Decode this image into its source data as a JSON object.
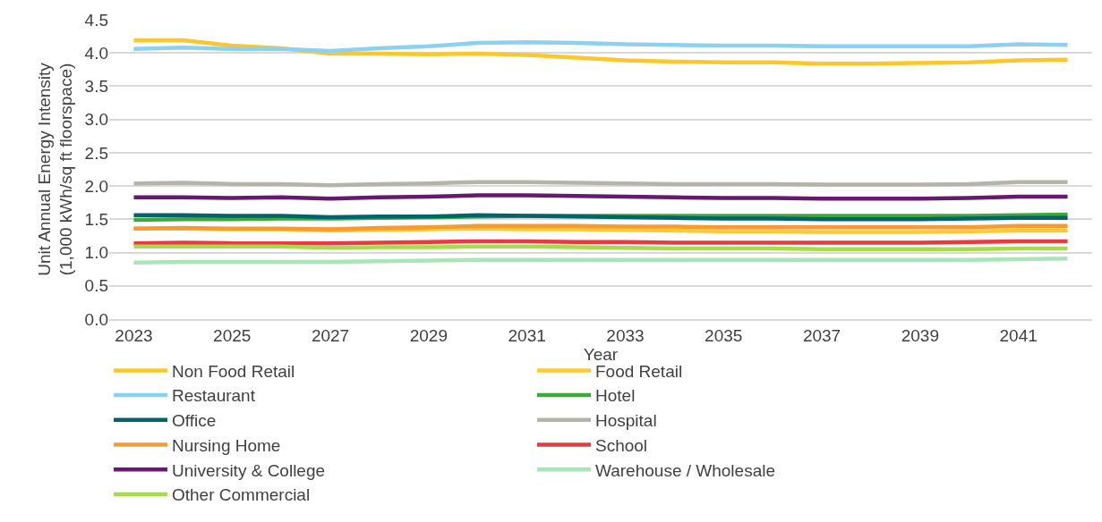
{
  "chart_data": {
    "type": "line",
    "xlabel": "Year",
    "ylabel": "Unit Annual Energy Intensity\n(1,000 kWh/sq ft floorspace)",
    "x": [
      2023,
      2024,
      2025,
      2026,
      2027,
      2028,
      2029,
      2030,
      2031,
      2032,
      2033,
      2034,
      2035,
      2036,
      2037,
      2038,
      2039,
      2040,
      2041,
      2042
    ],
    "xlim": [
      2022.5,
      2042.5
    ],
    "xticks": [
      2023,
      2025,
      2027,
      2029,
      2031,
      2033,
      2035,
      2037,
      2039,
      2041
    ],
    "ylim": [
      0,
      4.5
    ],
    "yticks": [
      {
        "value": 0,
        "label": "0.0"
      },
      {
        "value": 0.5,
        "label": "0.5"
      },
      {
        "value": 1,
        "label": "1.0"
      },
      {
        "value": 1.5,
        "label": "1.5"
      },
      {
        "value": 2,
        "label": "2.0"
      },
      {
        "value": 2.5,
        "label": "2.5"
      },
      {
        "value": 3,
        "label": "3.0"
      },
      {
        "value": 3.5,
        "label": "3.5"
      },
      {
        "value": 4,
        "label": "4.0"
      },
      {
        "value": 4.5,
        "label": "4.5"
      }
    ],
    "grid": "y",
    "legend": "bottom",
    "marker": "none",
    "line_style": "solid",
    "series": [
      {
        "name": "Non Food Retail",
        "color": "#fcc72c",
        "values": [
          4.19,
          4.19,
          4.11,
          4.07,
          3.99,
          3.99,
          3.98,
          3.99,
          3.97,
          3.93,
          3.89,
          3.87,
          3.86,
          3.86,
          3.84,
          3.84,
          3.85,
          3.86,
          3.89,
          3.9
        ]
      },
      {
        "name": "Food Retail",
        "color": "#ffc935",
        "values": [
          1.36,
          1.36,
          1.35,
          1.35,
          1.33,
          1.34,
          1.35,
          1.36,
          1.35,
          1.35,
          1.34,
          1.33,
          1.32,
          1.32,
          1.31,
          1.31,
          1.31,
          1.32,
          1.33,
          1.33
        ]
      },
      {
        "name": "Restaurant",
        "color": "#8dd0f2",
        "values": [
          4.06,
          4.08,
          4.06,
          4.06,
          4.03,
          4.07,
          4.1,
          4.15,
          4.16,
          4.15,
          4.13,
          4.12,
          4.11,
          4.11,
          4.1,
          4.1,
          4.1,
          4.1,
          4.13,
          4.12
        ]
      },
      {
        "name": "Hotel",
        "color": "#3ea83f",
        "values": [
          1.49,
          1.5,
          1.5,
          1.51,
          1.51,
          1.52,
          1.53,
          1.54,
          1.55,
          1.55,
          1.55,
          1.55,
          1.55,
          1.55,
          1.55,
          1.55,
          1.55,
          1.55,
          1.56,
          1.57
        ]
      },
      {
        "name": "Office",
        "color": "#006468",
        "values": [
          1.56,
          1.56,
          1.55,
          1.55,
          1.53,
          1.54,
          1.54,
          1.56,
          1.55,
          1.54,
          1.53,
          1.52,
          1.51,
          1.51,
          1.5,
          1.5,
          1.5,
          1.51,
          1.52,
          1.52
        ]
      },
      {
        "name": "Hospital",
        "color": "#b4b5a8",
        "values": [
          2.04,
          2.05,
          2.03,
          2.03,
          2.01,
          2.03,
          2.04,
          2.06,
          2.06,
          2.05,
          2.04,
          2.03,
          2.03,
          2.03,
          2.02,
          2.02,
          2.02,
          2.03,
          2.06,
          2.06
        ]
      },
      {
        "name": "Nursing Home",
        "color": "#f79a30",
        "values": [
          1.36,
          1.37,
          1.36,
          1.36,
          1.35,
          1.37,
          1.38,
          1.4,
          1.4,
          1.4,
          1.39,
          1.39,
          1.38,
          1.38,
          1.38,
          1.38,
          1.38,
          1.38,
          1.4,
          1.4
        ]
      },
      {
        "name": "School",
        "color": "#e83a3f",
        "values": [
          1.14,
          1.15,
          1.14,
          1.14,
          1.14,
          1.15,
          1.16,
          1.17,
          1.17,
          1.16,
          1.16,
          1.15,
          1.15,
          1.15,
          1.15,
          1.15,
          1.15,
          1.16,
          1.17,
          1.17
        ]
      },
      {
        "name": "University & College",
        "color": "#65196f",
        "values": [
          1.83,
          1.83,
          1.82,
          1.83,
          1.81,
          1.83,
          1.84,
          1.86,
          1.86,
          1.85,
          1.84,
          1.83,
          1.82,
          1.82,
          1.81,
          1.81,
          1.81,
          1.82,
          1.84,
          1.84
        ]
      },
      {
        "name": "Warehouse / Wholesale",
        "color": "#a8e6b8",
        "values": [
          0.85,
          0.86,
          0.86,
          0.86,
          0.86,
          0.87,
          0.88,
          0.89,
          0.89,
          0.89,
          0.89,
          0.89,
          0.89,
          0.89,
          0.89,
          0.89,
          0.89,
          0.89,
          0.9,
          0.91
        ]
      },
      {
        "name": "Other Commercial",
        "color": "#a6dc4c",
        "values": [
          1.09,
          1.09,
          1.09,
          1.09,
          1.07,
          1.08,
          1.08,
          1.09,
          1.09,
          1.08,
          1.07,
          1.06,
          1.06,
          1.06,
          1.05,
          1.05,
          1.05,
          1.05,
          1.06,
          1.06
        ]
      }
    ]
  }
}
